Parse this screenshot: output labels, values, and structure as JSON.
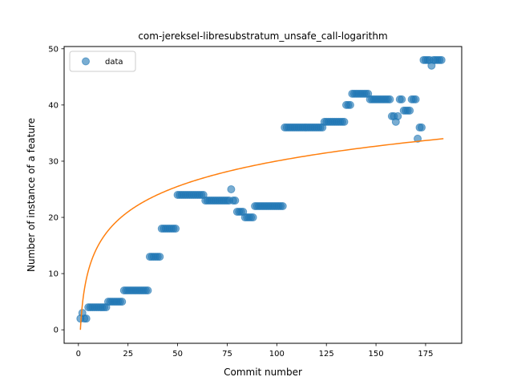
{
  "chart_data": {
    "type": "scatter",
    "title": "com-jereksel-libresubstratum_unsafe_call-logarithm",
    "xlabel": "Commit number",
    "ylabel": "Number of instance of a feature",
    "xlim": [
      -7.2,
      193.2
    ],
    "ylim": [
      -2.4,
      50.4
    ],
    "xticks": [
      0,
      25,
      50,
      75,
      100,
      125,
      150,
      175
    ],
    "yticks": [
      0,
      10,
      20,
      30,
      40,
      50
    ],
    "grid": false,
    "legend": {
      "position": "top-left",
      "entries": [
        "data"
      ]
    },
    "colors": {
      "points": "#1f77b4",
      "fit": "#ff7f0e"
    },
    "series": [
      {
        "name": "data",
        "kind": "points",
        "points": [
          [
            1,
            2
          ],
          [
            2,
            3
          ],
          [
            3,
            2
          ],
          [
            4,
            2
          ],
          [
            5,
            4
          ],
          [
            6,
            4
          ],
          [
            7,
            4
          ],
          [
            8,
            4
          ],
          [
            9,
            4
          ],
          [
            10,
            4
          ],
          [
            11,
            4
          ],
          [
            12,
            4
          ],
          [
            13,
            4
          ],
          [
            14,
            4
          ],
          [
            15,
            5
          ],
          [
            16,
            5
          ],
          [
            17,
            5
          ],
          [
            18,
            5
          ],
          [
            19,
            5
          ],
          [
            20,
            5
          ],
          [
            21,
            5
          ],
          [
            22,
            5
          ],
          [
            23,
            7
          ],
          [
            24,
            7
          ],
          [
            25,
            7
          ],
          [
            26,
            7
          ],
          [
            27,
            7
          ],
          [
            28,
            7
          ],
          [
            29,
            7
          ],
          [
            30,
            7
          ],
          [
            31,
            7
          ],
          [
            32,
            7
          ],
          [
            33,
            7
          ],
          [
            34,
            7
          ],
          [
            35,
            7
          ],
          [
            36,
            13
          ],
          [
            37,
            13
          ],
          [
            38,
            13
          ],
          [
            39,
            13
          ],
          [
            40,
            13
          ],
          [
            41,
            13
          ],
          [
            42,
            18
          ],
          [
            43,
            18
          ],
          [
            44,
            18
          ],
          [
            45,
            18
          ],
          [
            46,
            18
          ],
          [
            47,
            18
          ],
          [
            48,
            18
          ],
          [
            49,
            18
          ],
          [
            50,
            24
          ],
          [
            51,
            24
          ],
          [
            52,
            24
          ],
          [
            53,
            24
          ],
          [
            54,
            24
          ],
          [
            55,
            24
          ],
          [
            56,
            24
          ],
          [
            57,
            24
          ],
          [
            58,
            24
          ],
          [
            59,
            24
          ],
          [
            60,
            24
          ],
          [
            61,
            24
          ],
          [
            62,
            24
          ],
          [
            63,
            24
          ],
          [
            64,
            23
          ],
          [
            65,
            23
          ],
          [
            66,
            23
          ],
          [
            67,
            23
          ],
          [
            68,
            23
          ],
          [
            69,
            23
          ],
          [
            70,
            23
          ],
          [
            71,
            23
          ],
          [
            72,
            23
          ],
          [
            73,
            23
          ],
          [
            74,
            23
          ],
          [
            75,
            23
          ],
          [
            76,
            23
          ],
          [
            77,
            25
          ],
          [
            78,
            23
          ],
          [
            79,
            23
          ],
          [
            80,
            21
          ],
          [
            81,
            21
          ],
          [
            82,
            21
          ],
          [
            83,
            21
          ],
          [
            84,
            20
          ],
          [
            85,
            20
          ],
          [
            86,
            20
          ],
          [
            87,
            20
          ],
          [
            88,
            20
          ],
          [
            89,
            22
          ],
          [
            90,
            22
          ],
          [
            91,
            22
          ],
          [
            92,
            22
          ],
          [
            93,
            22
          ],
          [
            94,
            22
          ],
          [
            95,
            22
          ],
          [
            96,
            22
          ],
          [
            97,
            22
          ],
          [
            98,
            22
          ],
          [
            99,
            22
          ],
          [
            100,
            22
          ],
          [
            101,
            22
          ],
          [
            102,
            22
          ],
          [
            103,
            22
          ],
          [
            104,
            36
          ],
          [
            105,
            36
          ],
          [
            106,
            36
          ],
          [
            107,
            36
          ],
          [
            108,
            36
          ],
          [
            109,
            36
          ],
          [
            110,
            36
          ],
          [
            111,
            36
          ],
          [
            112,
            36
          ],
          [
            113,
            36
          ],
          [
            114,
            36
          ],
          [
            115,
            36
          ],
          [
            116,
            36
          ],
          [
            117,
            36
          ],
          [
            118,
            36
          ],
          [
            119,
            36
          ],
          [
            120,
            36
          ],
          [
            121,
            36
          ],
          [
            122,
            36
          ],
          [
            123,
            36
          ],
          [
            124,
            37
          ],
          [
            125,
            37
          ],
          [
            126,
            37
          ],
          [
            127,
            37
          ],
          [
            128,
            37
          ],
          [
            129,
            37
          ],
          [
            130,
            37
          ],
          [
            131,
            37
          ],
          [
            132,
            37
          ],
          [
            133,
            37
          ],
          [
            134,
            37
          ],
          [
            135,
            40
          ],
          [
            136,
            40
          ],
          [
            137,
            40
          ],
          [
            138,
            42
          ],
          [
            139,
            42
          ],
          [
            140,
            42
          ],
          [
            141,
            42
          ],
          [
            142,
            42
          ],
          [
            143,
            42
          ],
          [
            144,
            42
          ],
          [
            145,
            42
          ],
          [
            146,
            42
          ],
          [
            147,
            41
          ],
          [
            148,
            41
          ],
          [
            149,
            41
          ],
          [
            150,
            41
          ],
          [
            151,
            41
          ],
          [
            152,
            41
          ],
          [
            153,
            41
          ],
          [
            154,
            41
          ],
          [
            155,
            41
          ],
          [
            156,
            41
          ],
          [
            157,
            41
          ],
          [
            158,
            38
          ],
          [
            159,
            38
          ],
          [
            160,
            37
          ],
          [
            161,
            38
          ],
          [
            162,
            41
          ],
          [
            163,
            41
          ],
          [
            164,
            39
          ],
          [
            165,
            39
          ],
          [
            166,
            39
          ],
          [
            167,
            39
          ],
          [
            168,
            41
          ],
          [
            169,
            41
          ],
          [
            170,
            41
          ],
          [
            171,
            34
          ],
          [
            172,
            36
          ],
          [
            173,
            36
          ],
          [
            174,
            48
          ],
          [
            175,
            48
          ],
          [
            176,
            48
          ],
          [
            177,
            48
          ],
          [
            178,
            47
          ],
          [
            179,
            48
          ],
          [
            180,
            48
          ],
          [
            181,
            48
          ],
          [
            182,
            48
          ],
          [
            183,
            48
          ]
        ]
      },
      {
        "name": "fit",
        "kind": "line",
        "function": "log",
        "a": 6.52,
        "b": 0,
        "x_range": [
          1,
          184
        ]
      }
    ]
  }
}
